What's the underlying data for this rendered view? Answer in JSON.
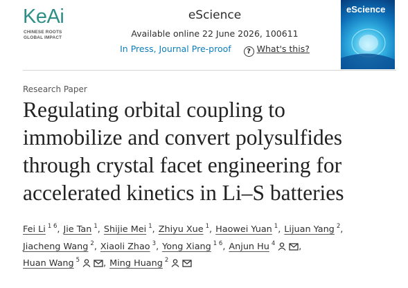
{
  "header": {
    "logo": "KeAi",
    "logo_tagline": [
      "CHINESE ROOTS",
      "GLOBAL IMPACT"
    ],
    "journal": "eScience",
    "availability": "Available online 22 June 2026, 100611",
    "status": "In Press, Journal Pre-proof",
    "help_icon": "?",
    "help": "What's this?",
    "cover_title": "eScience"
  },
  "article": {
    "type": "Research Paper",
    "title_lines": [
      "Regulating orbital coupling to",
      "immobilize and convert polysulfides",
      "through crystal facet engineering for",
      "accelerated kinetics in Li–S batteries"
    ],
    "author_separator": ",",
    "author_rows": [
      [
        {
          "name": "Fei Li",
          "sup": "1 6",
          "corresponding": false
        },
        {
          "name": "Jie Tan",
          "sup": "1",
          "corresponding": false
        },
        {
          "name": "Shijie Mei",
          "sup": "1",
          "corresponding": false
        },
        {
          "name": "Zhiyu Xue",
          "sup": "1",
          "corresponding": false
        },
        {
          "name": "Haowei Yuan",
          "sup": "1",
          "corresponding": false
        },
        {
          "name": "Lijuan Yang",
          "sup": "2",
          "corresponding": false
        }
      ],
      [
        {
          "name": "Jiacheng Wang",
          "sup": "2",
          "corresponding": false
        },
        {
          "name": "Xiaoli Zhao",
          "sup": "3",
          "corresponding": false
        },
        {
          "name": "Yong Xiang",
          "sup": "1 6",
          "corresponding": false
        },
        {
          "name": "Anjun Hu",
          "sup": "4",
          "corresponding": true
        }
      ],
      [
        {
          "name": "Huan Wang",
          "sup": "5",
          "corresponding": true
        },
        {
          "name": "Ming Huang",
          "sup": "2",
          "corresponding": true
        }
      ]
    ]
  }
}
